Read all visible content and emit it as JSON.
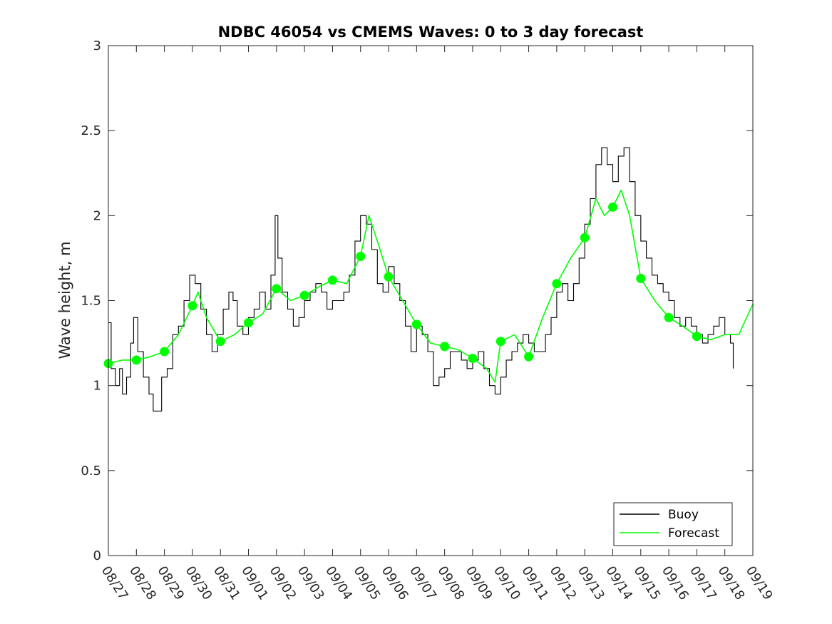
{
  "chart_data": {
    "type": "line",
    "title": "NDBC 46054 vs CMEMS Waves: 0 to 3 day forecast",
    "xlabel": "",
    "ylabel": "Wave height, m",
    "x_ticks": [
      "08/27",
      "08/28",
      "08/29",
      "08/30",
      "08/31",
      "09/01",
      "09/02",
      "09/03",
      "09/04",
      "09/05",
      "09/06",
      "09/07",
      "09/08",
      "09/09",
      "09/10",
      "09/11",
      "09/12",
      "09/13",
      "09/14",
      "09/15",
      "09/16",
      "09/17",
      "09/18",
      "09/19"
    ],
    "xlim": [
      "08/27",
      "09/19"
    ],
    "ylim": [
      0,
      3
    ],
    "y_ticks": [
      0,
      0.5,
      1,
      1.5,
      2,
      2.5,
      3
    ],
    "y_tick_labels": [
      "0",
      "0.5",
      "1",
      "1.5",
      "2",
      "2.5",
      "3"
    ],
    "grid": false,
    "legend": {
      "position": "bottom-right",
      "entries": [
        "Buoy",
        "Forecast"
      ]
    },
    "colors": {
      "buoy": "#000000",
      "forecast": "#00ff00"
    },
    "series": [
      {
        "name": "Buoy",
        "x_unit": "days after 08/27",
        "points": [
          [
            0,
            1.37
          ],
          [
            0.1,
            1.1
          ],
          [
            0.25,
            1.0
          ],
          [
            0.4,
            1.1
          ],
          [
            0.5,
            0.95
          ],
          [
            0.65,
            1.05
          ],
          [
            0.8,
            1.25
          ],
          [
            0.9,
            1.4
          ],
          [
            1.05,
            1.2
          ],
          [
            1.25,
            1.05
          ],
          [
            1.45,
            0.95
          ],
          [
            1.6,
            0.85
          ],
          [
            1.75,
            0.85
          ],
          [
            1.9,
            1.05
          ],
          [
            2.1,
            1.1
          ],
          [
            2.3,
            1.3
          ],
          [
            2.5,
            1.35
          ],
          [
            2.7,
            1.5
          ],
          [
            2.9,
            1.65
          ],
          [
            3.1,
            1.6
          ],
          [
            3.3,
            1.45
          ],
          [
            3.5,
            1.3
          ],
          [
            3.7,
            1.2
          ],
          [
            3.9,
            1.3
          ],
          [
            4.1,
            1.45
          ],
          [
            4.3,
            1.55
          ],
          [
            4.45,
            1.5
          ],
          [
            4.6,
            1.35
          ],
          [
            4.8,
            1.3
          ],
          [
            5.0,
            1.4
          ],
          [
            5.2,
            1.45
          ],
          [
            5.4,
            1.55
          ],
          [
            5.6,
            1.45
          ],
          [
            5.8,
            1.65
          ],
          [
            5.95,
            2.0
          ],
          [
            6.05,
            1.75
          ],
          [
            6.2,
            1.55
          ],
          [
            6.4,
            1.45
          ],
          [
            6.6,
            1.35
          ],
          [
            6.8,
            1.4
          ],
          [
            7.0,
            1.5
          ],
          [
            7.2,
            1.55
          ],
          [
            7.4,
            1.6
          ],
          [
            7.6,
            1.55
          ],
          [
            7.8,
            1.45
          ],
          [
            8.0,
            1.5
          ],
          [
            8.2,
            1.5
          ],
          [
            8.4,
            1.55
          ],
          [
            8.6,
            1.65
          ],
          [
            8.8,
            1.85
          ],
          [
            9.0,
            2.0
          ],
          [
            9.2,
            1.95
          ],
          [
            9.4,
            1.8
          ],
          [
            9.6,
            1.6
          ],
          [
            9.8,
            1.55
          ],
          [
            10.0,
            1.7
          ],
          [
            10.2,
            1.6
          ],
          [
            10.4,
            1.5
          ],
          [
            10.6,
            1.35
          ],
          [
            10.8,
            1.2
          ],
          [
            11.0,
            1.35
          ],
          [
            11.2,
            1.3
          ],
          [
            11.4,
            1.2
          ],
          [
            11.6,
            1.0
          ],
          [
            11.8,
            1.05
          ],
          [
            12.0,
            1.1
          ],
          [
            12.2,
            1.2
          ],
          [
            12.4,
            1.2
          ],
          [
            12.6,
            1.15
          ],
          [
            12.8,
            1.1
          ],
          [
            13.0,
            1.15
          ],
          [
            13.2,
            1.2
          ],
          [
            13.4,
            1.1
          ],
          [
            13.6,
            1.0
          ],
          [
            13.8,
            0.95
          ],
          [
            14.0,
            1.05
          ],
          [
            14.2,
            1.15
          ],
          [
            14.4,
            1.2
          ],
          [
            14.6,
            1.25
          ],
          [
            14.8,
            1.3
          ],
          [
            15.0,
            1.25
          ],
          [
            15.2,
            1.2
          ],
          [
            15.4,
            1.2
          ],
          [
            15.6,
            1.3
          ],
          [
            15.8,
            1.4
          ],
          [
            16.0,
            1.55
          ],
          [
            16.2,
            1.6
          ],
          [
            16.4,
            1.5
          ],
          [
            16.6,
            1.6
          ],
          [
            16.8,
            1.75
          ],
          [
            17.0,
            1.95
          ],
          [
            17.2,
            2.1
          ],
          [
            17.4,
            2.3
          ],
          [
            17.6,
            2.4
          ],
          [
            17.8,
            2.3
          ],
          [
            18.0,
            2.2
          ],
          [
            18.2,
            2.35
          ],
          [
            18.4,
            2.4
          ],
          [
            18.6,
            2.2
          ],
          [
            18.8,
            2.0
          ],
          [
            19.0,
            1.85
          ],
          [
            19.2,
            1.75
          ],
          [
            19.4,
            1.65
          ],
          [
            19.6,
            1.6
          ],
          [
            19.8,
            1.55
          ],
          [
            20.0,
            1.5
          ],
          [
            20.2,
            1.4
          ],
          [
            20.4,
            1.35
          ],
          [
            20.6,
            1.4
          ],
          [
            20.8,
            1.35
          ],
          [
            21.0,
            1.3
          ],
          [
            21.2,
            1.25
          ],
          [
            21.4,
            1.3
          ],
          [
            21.6,
            1.35
          ],
          [
            21.8,
            1.4
          ],
          [
            22.0,
            1.3
          ],
          [
            22.2,
            1.25
          ],
          [
            22.3,
            1.1
          ]
        ]
      },
      {
        "name": "Forecast",
        "x_unit": "days after 08/27",
        "points": [
          [
            0,
            1.13
          ],
          [
            0.5,
            1.15
          ],
          [
            1.0,
            1.15
          ],
          [
            1.5,
            1.17
          ],
          [
            2.0,
            1.2
          ],
          [
            2.5,
            1.3
          ],
          [
            3.0,
            1.47
          ],
          [
            3.2,
            1.55
          ],
          [
            3.5,
            1.4
          ],
          [
            4.0,
            1.26
          ],
          [
            4.5,
            1.3
          ],
          [
            5.0,
            1.37
          ],
          [
            5.5,
            1.42
          ],
          [
            6.0,
            1.57
          ],
          [
            6.5,
            1.5
          ],
          [
            7.0,
            1.53
          ],
          [
            7.5,
            1.58
          ],
          [
            8.0,
            1.62
          ],
          [
            8.5,
            1.6
          ],
          [
            9.0,
            1.76
          ],
          [
            9.3,
            2.0
          ],
          [
            9.6,
            1.85
          ],
          [
            10.0,
            1.64
          ],
          [
            10.5,
            1.5
          ],
          [
            11.0,
            1.36
          ],
          [
            11.5,
            1.25
          ],
          [
            12.0,
            1.23
          ],
          [
            12.5,
            1.21
          ],
          [
            13.0,
            1.16
          ],
          [
            13.5,
            1.1
          ],
          [
            13.8,
            1.02
          ],
          [
            14.0,
            1.26
          ],
          [
            14.5,
            1.3
          ],
          [
            15.0,
            1.17
          ],
          [
            15.5,
            1.4
          ],
          [
            16.0,
            1.6
          ],
          [
            16.5,
            1.75
          ],
          [
            17.0,
            1.87
          ],
          [
            17.4,
            2.1
          ],
          [
            17.7,
            2.0
          ],
          [
            18.0,
            2.05
          ],
          [
            18.3,
            2.15
          ],
          [
            18.6,
            2.0
          ],
          [
            19.0,
            1.63
          ],
          [
            19.5,
            1.5
          ],
          [
            20.0,
            1.4
          ],
          [
            20.5,
            1.35
          ],
          [
            21.0,
            1.29
          ],
          [
            21.5,
            1.27
          ],
          [
            22.0,
            1.3
          ],
          [
            22.5,
            1.3
          ],
          [
            23.0,
            1.48
          ]
        ]
      },
      {
        "name": "Forecast markers",
        "x_unit": "days after 08/27",
        "points": [
          [
            0,
            1.13
          ],
          [
            1,
            1.15
          ],
          [
            2,
            1.2
          ],
          [
            3,
            1.47
          ],
          [
            4,
            1.26
          ],
          [
            5,
            1.37
          ],
          [
            6,
            1.57
          ],
          [
            7,
            1.53
          ],
          [
            8,
            1.62
          ],
          [
            9,
            1.76
          ],
          [
            10,
            1.64
          ],
          [
            11,
            1.36
          ],
          [
            12,
            1.23
          ],
          [
            13,
            1.16
          ],
          [
            14,
            1.26
          ],
          [
            15,
            1.17
          ],
          [
            16,
            1.6
          ],
          [
            17,
            1.87
          ],
          [
            18,
            2.05
          ],
          [
            19,
            1.63
          ],
          [
            20,
            1.4
          ],
          [
            21,
            1.29
          ]
        ]
      }
    ]
  }
}
